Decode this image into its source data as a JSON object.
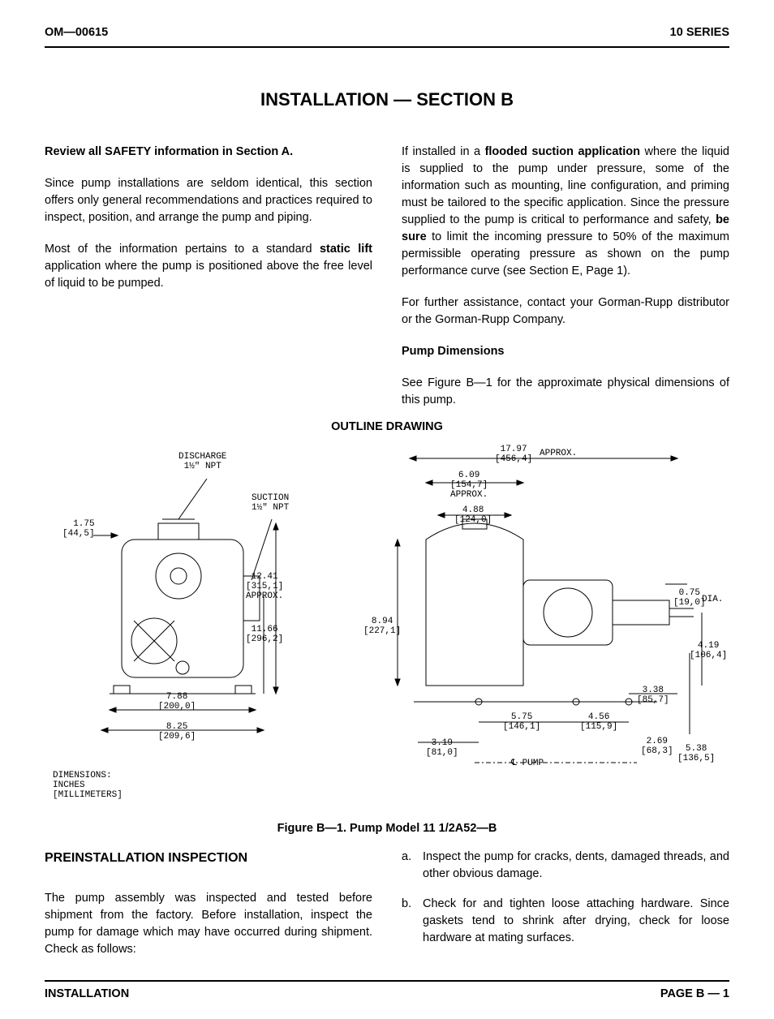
{
  "header": {
    "left": "OM—00615",
    "right": "10 SERIES"
  },
  "title": "INSTALLATION — SECTION B",
  "intro": {
    "lead": "Review all SAFETY information in Section A.",
    "p1": "Since pump installations are seldom identical, this section offers only general recommendations and practices required to inspect, position, and arrange the pump and piping.",
    "p2a": "Most of the information pertains to a standard ",
    "p2b": "static lift",
    "p2c": " application where the pump is positioned above the free level of liquid to be pumped.",
    "p3a": "If installed in a ",
    "p3b": "flooded suction application",
    "p3c": " where the liquid is supplied to the pump under pressure, some of the information such as mounting, line configuration, and priming must be tailored to the specific application. Since the pressure supplied to the pump is critical to performance and safety, ",
    "p3d": "be sure",
    "p3e": " to limit the incoming pressure to 50% of the maximum permissible operating pressure as shown on the pump performance curve (see Section E, Page 1).",
    "p4": "For further assistance, contact your Gorman-Rupp distributor or the Gorman-Rupp Company.",
    "pump_dim_head": "Pump Dimensions",
    "p5": "See Figure B—1 for the approximate physical dimensions of this pump."
  },
  "drawing": {
    "title": "OUTLINE DRAWING",
    "caption": "Figure B—1. Pump Model 11 1/2A52—B",
    "labels": {
      "discharge": "DISCHARGE\n1½\" NPT",
      "suction": "SUCTION\n1½\" NPT",
      "d_1_75": "1.75\n[44,5]",
      "d_12_41": "12.41\n[315,1]\nAPPROX.",
      "d_11_66": "11.66\n[296,2]",
      "d_7_88": "7.88\n[200,0]",
      "d_8_25": "8.25\n[209,6]",
      "units": "DIMENSIONS:\nINCHES\n[MILLIMETERS]",
      "d_17_97": "17.97\n[456,4]",
      "approx1": "APPROX.",
      "d_6_09": "6.09\n[154,7]\nAPPROX.",
      "d_4_88": "4.88\n[124,0]",
      "d_8_94": "8.94\n[227,1]",
      "d_0_75": "0.75\n[19,0]",
      "dia": "DIA.",
      "d_4_19": "4.19\n[106,4]",
      "d_3_38": "3.38\n[85,7]",
      "d_5_75": "5.75\n[146,1]",
      "d_4_56": "4.56\n[115,9]",
      "d_3_19": "3.19\n[81,0]",
      "d_2_69": "2.69\n[68,3]",
      "d_5_38": "5.38\n[136,5]",
      "cl_pump": "℄ PUMP"
    }
  },
  "preinstall": {
    "heading": "PREINSTALLATION INSPECTION",
    "p1": "The pump assembly was inspected and tested before shipment from the factory. Before installation, inspect the pump for damage which may have occurred during shipment. Check as follows:",
    "a": "Inspect the pump for cracks, dents, damaged threads, and other obvious damage.",
    "b": "Check for and tighten loose attaching hardware. Since gaskets tend to shrink after drying, check for loose hardware at mating surfaces."
  },
  "footer": {
    "left": "INSTALLATION",
    "right": "PAGE B — 1"
  }
}
